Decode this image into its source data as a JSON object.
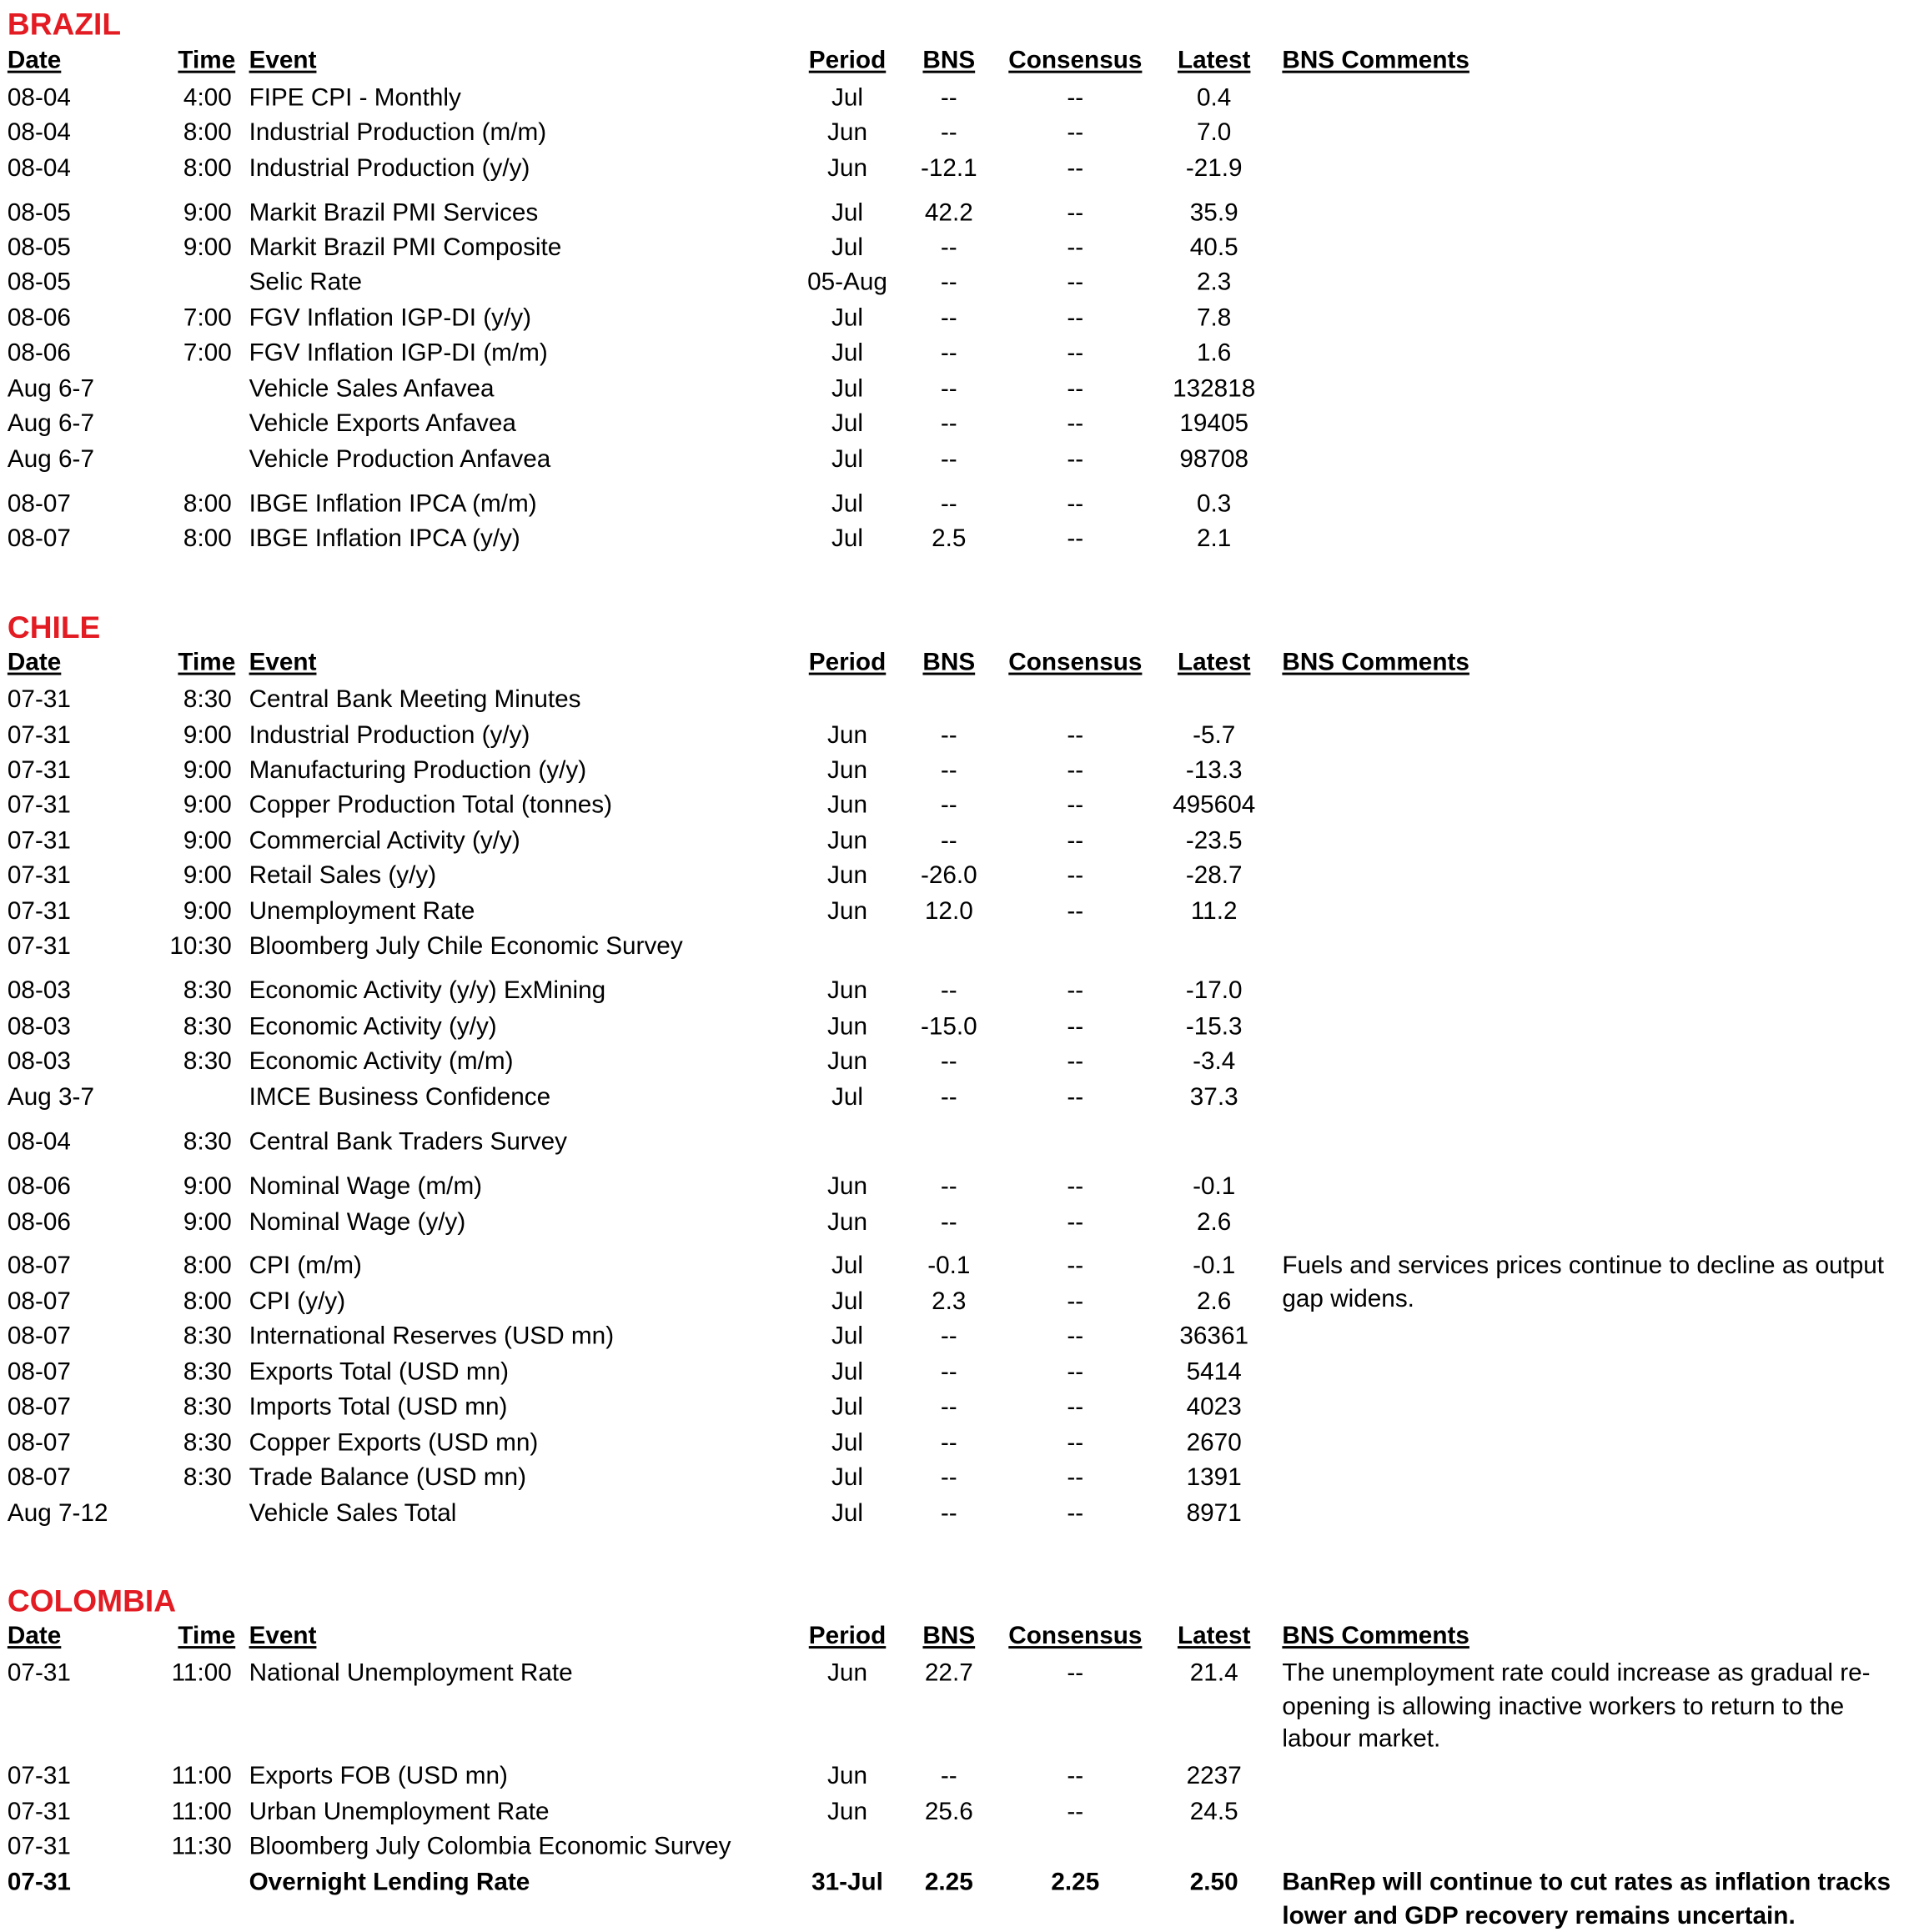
{
  "columns": {
    "date": "Date",
    "time": "Time",
    "event": "Event",
    "period": "Period",
    "bns": "BNS",
    "consensus": "Consensus",
    "latest": "Latest",
    "comments": "BNS Comments"
  },
  "accent_color": "#e31b23",
  "sections": [
    {
      "title": "BRAZIL",
      "rows": [
        {
          "date": "08-04",
          "time": "4:00",
          "event": "FIPE CPI - Monthly",
          "period": "Jul",
          "bns": "--",
          "consensus": "--",
          "latest": "0.4",
          "comment": ""
        },
        {
          "date": "08-04",
          "time": "8:00",
          "event": "Industrial Production (m/m)",
          "period": "Jun",
          "bns": "--",
          "consensus": "--",
          "latest": "7.0",
          "comment": ""
        },
        {
          "date": "08-04",
          "time": "8:00",
          "event": "Industrial Production (y/y)",
          "period": "Jun",
          "bns": "-12.1",
          "consensus": "--",
          "latest": "-21.9",
          "comment": ""
        },
        {
          "date": "08-05",
          "time": "9:00",
          "event": "Markit Brazil PMI Services",
          "period": "Jul",
          "bns": "42.2",
          "consensus": "--",
          "latest": "35.9",
          "comment": ""
        },
        {
          "date": "08-05",
          "time": "9:00",
          "event": "Markit Brazil PMI Composite",
          "period": "Jul",
          "bns": "--",
          "consensus": "--",
          "latest": "40.5",
          "comment": ""
        },
        {
          "date": "08-05",
          "time": "",
          "event": "Selic Rate",
          "period": "05-Aug",
          "bns": "--",
          "consensus": "--",
          "latest": "2.3",
          "comment": ""
        },
        {
          "date": "08-06",
          "time": "7:00",
          "event": "FGV Inflation IGP-DI (y/y)",
          "period": "Jul",
          "bns": "--",
          "consensus": "--",
          "latest": "7.8",
          "comment": ""
        },
        {
          "date": "08-06",
          "time": "7:00",
          "event": "FGV Inflation IGP-DI (m/m)",
          "period": "Jul",
          "bns": "--",
          "consensus": "--",
          "latest": "1.6",
          "comment": ""
        },
        {
          "date": "Aug 6-7",
          "time": "",
          "event": "Vehicle Sales Anfavea",
          "period": "Jul",
          "bns": "--",
          "consensus": "--",
          "latest": "132818",
          "comment": ""
        },
        {
          "date": "Aug 6-7",
          "time": "",
          "event": "Vehicle Exports Anfavea",
          "period": "Jul",
          "bns": "--",
          "consensus": "--",
          "latest": "19405",
          "comment": ""
        },
        {
          "date": "Aug 6-7",
          "time": "",
          "event": "Vehicle Production Anfavea",
          "period": "Jul",
          "bns": "--",
          "consensus": "--",
          "latest": "98708",
          "comment": ""
        },
        {
          "date": "08-07",
          "time": "8:00",
          "event": "IBGE Inflation IPCA (m/m)",
          "period": "Jul",
          "bns": "--",
          "consensus": "--",
          "latest": "0.3",
          "comment": ""
        },
        {
          "date": "08-07",
          "time": "8:00",
          "event": "IBGE Inflation IPCA (y/y)",
          "period": "Jul",
          "bns": "2.5",
          "consensus": "--",
          "latest": "2.1",
          "comment": ""
        }
      ]
    },
    {
      "title": "CHILE",
      "rows": [
        {
          "date": "07-31",
          "time": "8:30",
          "event": "Central Bank Meeting Minutes",
          "period": "",
          "bns": "",
          "consensus": "",
          "latest": "",
          "comment": ""
        },
        {
          "date": "07-31",
          "time": "9:00",
          "event": "Industrial Production (y/y)",
          "period": "Jun",
          "bns": "--",
          "consensus": "--",
          "latest": "-5.7",
          "comment": ""
        },
        {
          "date": "07-31",
          "time": "9:00",
          "event": "Manufacturing Production (y/y)",
          "period": "Jun",
          "bns": "--",
          "consensus": "--",
          "latest": "-13.3",
          "comment": ""
        },
        {
          "date": "07-31",
          "time": "9:00",
          "event": "Copper Production Total (tonnes)",
          "period": "Jun",
          "bns": "--",
          "consensus": "--",
          "latest": "495604",
          "comment": ""
        },
        {
          "date": "07-31",
          "time": "9:00",
          "event": "Commercial Activity (y/y)",
          "period": "Jun",
          "bns": "--",
          "consensus": "--",
          "latest": "-23.5",
          "comment": ""
        },
        {
          "date": "07-31",
          "time": "9:00",
          "event": "Retail Sales (y/y)",
          "period": "Jun",
          "bns": "-26.0",
          "consensus": "--",
          "latest": "-28.7",
          "comment": ""
        },
        {
          "date": "07-31",
          "time": "9:00",
          "event": "Unemployment Rate",
          "period": "Jun",
          "bns": "12.0",
          "consensus": "--",
          "latest": "11.2",
          "comment": ""
        },
        {
          "date": "07-31",
          "time": "10:30",
          "event": "Bloomberg July Chile Economic Survey",
          "period": "",
          "bns": "",
          "consensus": "",
          "latest": "",
          "comment": ""
        },
        {
          "date": "08-03",
          "time": "8:30",
          "event": "Economic Activity (y/y) ExMining",
          "period": "Jun",
          "bns": "--",
          "consensus": "--",
          "latest": "-17.0",
          "comment": ""
        },
        {
          "date": "08-03",
          "time": "8:30",
          "event": "Economic Activity (y/y)",
          "period": "Jun",
          "bns": "-15.0",
          "consensus": "--",
          "latest": "-15.3",
          "comment": ""
        },
        {
          "date": "08-03",
          "time": "8:30",
          "event": "Economic Activity (m/m)",
          "period": "Jun",
          "bns": "--",
          "consensus": "--",
          "latest": "-3.4",
          "comment": ""
        },
        {
          "date": "Aug 3-7",
          "time": "",
          "event": "IMCE Business Confidence",
          "period": "Jul",
          "bns": "--",
          "consensus": "--",
          "latest": "37.3",
          "comment": ""
        },
        {
          "date": "08-04",
          "time": "8:30",
          "event": "Central Bank Traders Survey",
          "period": "",
          "bns": "",
          "consensus": "",
          "latest": "",
          "comment": ""
        },
        {
          "date": "08-06",
          "time": "9:00",
          "event": "Nominal Wage (m/m)",
          "period": "Jun",
          "bns": "--",
          "consensus": "--",
          "latest": "-0.1",
          "comment": ""
        },
        {
          "date": "08-06",
          "time": "9:00",
          "event": "Nominal Wage (y/y)",
          "period": "Jun",
          "bns": "--",
          "consensus": "--",
          "latest": "2.6",
          "comment": ""
        },
        {
          "date": "08-07",
          "time": "8:00",
          "event": "CPI (m/m)",
          "period": "Jul",
          "bns": "-0.1",
          "consensus": "--",
          "latest": "-0.1",
          "comment": "Fuels and services prices continue to decline as output gap widens."
        },
        {
          "date": "08-07",
          "time": "8:00",
          "event": "CPI (y/y)",
          "period": "Jul",
          "bns": "2.3",
          "consensus": "--",
          "latest": "2.6",
          "comment": ""
        },
        {
          "date": "08-07",
          "time": "8:30",
          "event": "International Reserves (USD mn)",
          "period": "Jul",
          "bns": "--",
          "consensus": "--",
          "latest": "36361",
          "comment": ""
        },
        {
          "date": "08-07",
          "time": "8:30",
          "event": "Exports Total (USD mn)",
          "period": "Jul",
          "bns": "--",
          "consensus": "--",
          "latest": "5414",
          "comment": ""
        },
        {
          "date": "08-07",
          "time": "8:30",
          "event": "Imports Total (USD mn)",
          "period": "Jul",
          "bns": "--",
          "consensus": "--",
          "latest": "4023",
          "comment": ""
        },
        {
          "date": "08-07",
          "time": "8:30",
          "event": "Copper Exports (USD mn)",
          "period": "Jul",
          "bns": "--",
          "consensus": "--",
          "latest": "2670",
          "comment": ""
        },
        {
          "date": "08-07",
          "time": "8:30",
          "event": "Trade Balance (USD mn)",
          "period": "Jul",
          "bns": "--",
          "consensus": "--",
          "latest": "1391",
          "comment": ""
        },
        {
          "date": "Aug 7-12",
          "time": "",
          "event": "Vehicle Sales Total",
          "period": "Jul",
          "bns": "--",
          "consensus": "--",
          "latest": "8971",
          "comment": ""
        }
      ]
    },
    {
      "title": "COLOMBIA",
      "rows": [
        {
          "date": "07-31",
          "time": "11:00",
          "event": "National Unemployment Rate",
          "period": "Jun",
          "bns": "22.7",
          "consensus": "--",
          "latest": "21.4",
          "comment": "The unemployment rate could increase as gradual re-opening is allowing inactive workers to return to the labour market."
        },
        {
          "date": "07-31",
          "time": "11:00",
          "event": "Exports FOB (USD mn)",
          "period": "Jun",
          "bns": "--",
          "consensus": "--",
          "latest": "2237",
          "comment": ""
        },
        {
          "date": "07-31",
          "time": "11:00",
          "event": "Urban Unemployment Rate",
          "period": "Jun",
          "bns": "25.6",
          "consensus": "--",
          "latest": "24.5",
          "comment": ""
        },
        {
          "date": "07-31",
          "time": "11:30",
          "event": "Bloomberg July Colombia Economic Survey",
          "period": "",
          "bns": "",
          "consensus": "",
          "latest": "",
          "comment": ""
        },
        {
          "date": "07-31",
          "time": "",
          "event": "Overnight Lending Rate",
          "period": "31-Jul",
          "bns": "2.25",
          "consensus": "2.25",
          "latest": "2.50",
          "comment": "BanRep will continue to cut rates as inflation tracks lower and GDP recovery remains uncertain.",
          "bold": true
        }
      ]
    }
  ]
}
